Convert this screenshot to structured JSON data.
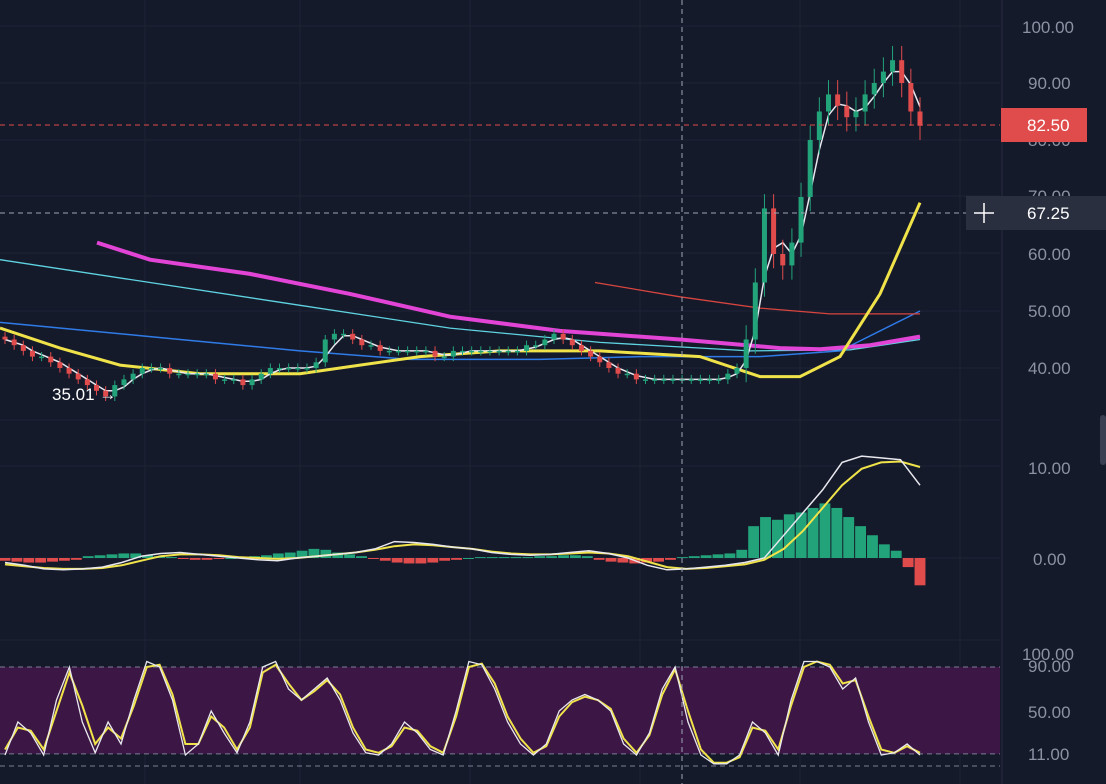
{
  "price_pane": {
    "axis_labels": [
      "100.00",
      "90.00",
      "80.00",
      "70.00",
      "60.00",
      "50.00",
      "40.00"
    ],
    "last_price_tag": "82.50",
    "crosshair_price_tag": "67.25",
    "low_marker": "35.01 →",
    "colors": {
      "up_candle": "#22a37a",
      "down_candle": "#e04b4b",
      "last_price_tag": "#e04b4b",
      "ma_white": "#e8e8ee",
      "ma_yellow": "#f0e34a",
      "ma_magenta": "#e244d6",
      "ma_cyan": "#5fd3e0",
      "ma_blue": "#2f7be8",
      "ma_red": "#d9453f"
    }
  },
  "macd_pane": {
    "axis_labels": [
      "10.00",
      "0.00"
    ]
  },
  "rsi_pane": {
    "axis_labels": [
      "100.00",
      "90.00",
      "50.00",
      "11.00"
    ],
    "band_color": "#3c1746"
  },
  "chart_data": [
    {
      "type": "candlestick",
      "title": "",
      "ylim": [
        31,
        102
      ],
      "y_ticks": [
        40,
        50,
        60,
        70,
        80,
        90,
        100
      ],
      "last_price": 82.5,
      "crosshair_price": 67.25,
      "annotated_low": 35.01,
      "close_series": [
        45,
        44,
        43,
        42,
        42,
        41,
        40,
        39,
        38,
        37,
        36,
        35.01,
        37,
        38,
        39,
        40,
        40,
        40,
        39,
        39,
        39,
        39,
        39,
        38,
        38,
        38,
        37,
        38,
        39,
        40,
        40,
        40,
        40,
        40,
        41,
        45,
        46,
        46,
        45,
        44,
        44,
        43,
        43,
        43,
        43,
        43,
        43,
        42,
        42,
        43,
        43,
        43,
        43,
        43,
        43,
        43,
        43,
        44,
        44,
        45,
        46,
        45,
        44,
        43,
        42,
        41,
        40,
        39,
        39,
        38,
        38,
        38,
        38,
        38,
        38,
        38,
        38,
        38,
        38,
        39,
        40,
        45,
        55,
        68,
        60,
        58,
        62,
        70,
        80,
        85,
        88,
        86,
        84,
        85,
        88,
        90,
        92,
        94,
        90,
        85,
        82.5
      ],
      "moving_averages": [
        {
          "color": "white",
          "values_from": "close",
          "smoothing": "short"
        },
        {
          "color": "yellow",
          "smoothing": "medium"
        },
        {
          "color": "magenta",
          "smoothing": "long"
        },
        {
          "color": "cyan",
          "smoothing": "long"
        },
        {
          "color": "blue",
          "smoothing": "very-long"
        },
        {
          "color": "red",
          "smoothing": "very-long"
        }
      ]
    },
    {
      "type": "bar",
      "title": "",
      "ylim": [
        -3,
        12
      ],
      "y_ticks": [
        0,
        10
      ],
      "histogram": [
        -0.3,
        -0.4,
        -0.5,
        -0.5,
        -0.4,
        -0.3,
        -0.2,
        0.2,
        0.3,
        0.4,
        0.5,
        0.5,
        0.3,
        0.2,
        0.1,
        -0.1,
        -0.2,
        -0.2,
        -0.1,
        0,
        0.1,
        0.2,
        0.3,
        0.5,
        0.6,
        0.8,
        1.0,
        0.9,
        0.6,
        0.4,
        0.2,
        -0.1,
        -0.3,
        -0.5,
        -0.6,
        -0.6,
        -0.5,
        -0.3,
        -0.2,
        0,
        0.1,
        0.1,
        0.1,
        0.1,
        0.1,
        0.2,
        0.2,
        0.3,
        0.3,
        0.2,
        -0.2,
        -0.4,
        -0.5,
        -0.6,
        -0.5,
        -0.4,
        -0.2,
        0.1,
        0.2,
        0.3,
        0.4,
        0.5,
        0.9,
        3.5,
        4.5,
        4.2,
        4.8,
        5.0,
        5.5,
        6.0,
        5.5,
        4.5,
        3.5,
        2.5,
        1.5,
        0.8,
        -1.0,
        -3.0
      ],
      "macd_line": [
        -0.5,
        -0.8,
        -1.2,
        -1.3,
        -1.2,
        -1.0,
        -0.5,
        0.2,
        0.5,
        0.6,
        0.4,
        0.2,
        0.0,
        -0.2,
        -0.3,
        0.0,
        0.2,
        0.4,
        0.6,
        1.0,
        1.8,
        1.7,
        1.5,
        1.2,
        1.0,
        0.6,
        0.4,
        0.3,
        0.4,
        0.6,
        0.8,
        0.5,
        0.0,
        -0.8,
        -1.3,
        -1.2,
        -1.0,
        -0.8,
        -0.5,
        0.0,
        2.5,
        5.0,
        7.5,
        10.5,
        11.2,
        11.0,
        10.8,
        8.0
      ],
      "signal_line": [
        -0.7,
        -0.9,
        -1.1,
        -1.2,
        -1.2,
        -1.1,
        -0.8,
        -0.3,
        0.2,
        0.4,
        0.4,
        0.3,
        0.1,
        0.0,
        -0.1,
        0.0,
        0.2,
        0.4,
        0.6,
        0.9,
        1.3,
        1.5,
        1.4,
        1.2,
        1.0,
        0.7,
        0.5,
        0.4,
        0.4,
        0.5,
        0.6,
        0.5,
        0.2,
        -0.4,
        -1.0,
        -1.2,
        -1.1,
        -0.9,
        -0.7,
        -0.2,
        1.0,
        3.0,
        5.5,
        8.0,
        9.8,
        10.5,
        10.6,
        10.0
      ]
    },
    {
      "type": "line",
      "title": "",
      "ylim": [
        0,
        100
      ],
      "y_ticks": [
        11,
        50,
        90,
        100
      ],
      "band": [
        11,
        90
      ],
      "k_line": [
        10,
        40,
        30,
        10,
        60,
        90,
        40,
        12,
        40,
        20,
        60,
        95,
        90,
        60,
        10,
        20,
        50,
        30,
        12,
        40,
        90,
        95,
        70,
        60,
        70,
        80,
        60,
        30,
        12,
        10,
        20,
        40,
        30,
        15,
        10,
        50,
        95,
        92,
        70,
        40,
        20,
        10,
        20,
        50,
        60,
        65,
        60,
        50,
        20,
        10,
        30,
        70,
        90,
        40,
        10,
        2,
        2,
        10,
        40,
        30,
        10,
        60,
        95,
        95,
        90,
        70,
        80,
        40,
        10,
        12,
        20,
        10
      ],
      "d_line": [
        15,
        35,
        32,
        15,
        50,
        85,
        55,
        20,
        35,
        25,
        55,
        90,
        92,
        65,
        20,
        20,
        45,
        35,
        15,
        35,
        85,
        92,
        75,
        60,
        68,
        78,
        65,
        35,
        15,
        12,
        18,
        35,
        32,
        18,
        12,
        45,
        90,
        93,
        75,
        45,
        25,
        12,
        18,
        45,
        58,
        63,
        60,
        52,
        25,
        12,
        28,
        65,
        88,
        50,
        15,
        3,
        3,
        8,
        35,
        32,
        15,
        55,
        90,
        95,
        92,
        75,
        78,
        45,
        15,
        12,
        18,
        12
      ]
    }
  ]
}
